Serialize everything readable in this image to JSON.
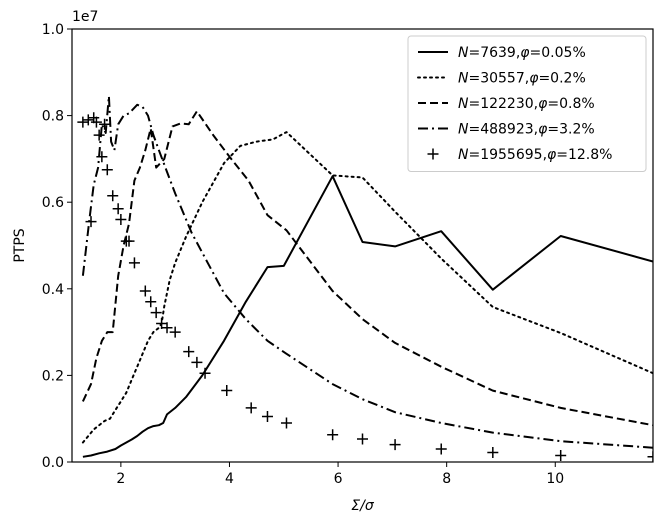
{
  "chart_data": {
    "type": "line",
    "xlabel": "Σ/σ",
    "ylabel": "PTPS",
    "y_multiplier_label": "1e7",
    "xlim": [
      1.1,
      11.8
    ],
    "ylim": [
      0.0,
      1.0
    ],
    "x_ticks": [
      2,
      4,
      6,
      8,
      10
    ],
    "y_ticks": [
      0.0,
      0.2,
      0.4,
      0.6,
      0.8,
      1.0
    ],
    "x_tick_labels": [
      "2",
      "4",
      "6",
      "8",
      "10"
    ],
    "y_tick_labels": [
      "0.0",
      "0.2",
      "0.4",
      "0.6",
      "0.8",
      "1.0"
    ],
    "grid": false,
    "legend_position": "top-right",
    "series": [
      {
        "name": "N=7639,φ=0.05%",
        "label_parts": [
          "N",
          "=7639,",
          "φ",
          "=0.05%"
        ],
        "style": "solid",
        "x": [
          1.3,
          1.45,
          1.6,
          1.75,
          1.9,
          2.0,
          2.1,
          2.2,
          2.3,
          2.4,
          2.5,
          2.6,
          2.7,
          2.78,
          2.85,
          3.0,
          3.2,
          3.5,
          3.9,
          4.3,
          4.7,
          5.0,
          5.9,
          6.45,
          7.05,
          7.9,
          8.85,
          10.1,
          11.8
        ],
        "y": [
          0.012,
          0.015,
          0.02,
          0.024,
          0.03,
          0.038,
          0.045,
          0.052,
          0.06,
          0.07,
          0.078,
          0.083,
          0.085,
          0.09,
          0.11,
          0.125,
          0.15,
          0.2,
          0.28,
          0.37,
          0.45,
          0.453,
          0.66,
          0.508,
          0.498,
          0.533,
          0.398,
          0.522,
          0.463
        ]
      },
      {
        "name": "N=30557,φ=0.2%",
        "label_parts": [
          "N",
          "=30557,",
          "φ",
          "=0.2%"
        ],
        "style": "dotted",
        "x": [
          1.3,
          1.5,
          1.7,
          1.8,
          1.9,
          2.0,
          2.1,
          2.2,
          2.3,
          2.4,
          2.5,
          2.6,
          2.7,
          2.75,
          2.8,
          2.9,
          3.0,
          3.2,
          3.5,
          3.9,
          4.2,
          4.5,
          4.8,
          5.05,
          5.9,
          6.45,
          7.05,
          7.9,
          8.85,
          10.1,
          11.8
        ],
        "y": [
          0.045,
          0.075,
          0.095,
          0.1,
          0.12,
          0.14,
          0.16,
          0.19,
          0.22,
          0.25,
          0.28,
          0.3,
          0.31,
          0.32,
          0.36,
          0.42,
          0.46,
          0.52,
          0.6,
          0.69,
          0.73,
          0.74,
          0.745,
          0.762,
          0.662,
          0.657,
          0.578,
          0.47,
          0.358,
          0.298,
          0.205
        ]
      },
      {
        "name": "N=122230,φ=0.8%",
        "label_parts": [
          "N",
          "=122230,",
          "φ",
          "=0.8%"
        ],
        "style": "dashed",
        "x": [
          1.3,
          1.45,
          1.55,
          1.65,
          1.75,
          1.85,
          1.95,
          2.05,
          2.15,
          2.25,
          2.35,
          2.45,
          2.55,
          2.65,
          2.8,
          2.95,
          3.1,
          3.25,
          3.4,
          3.7,
          4.0,
          4.35,
          4.7,
          5.05,
          5.9,
          6.45,
          7.05,
          7.9,
          8.85,
          10.1,
          11.8
        ],
        "y": [
          0.14,
          0.18,
          0.24,
          0.28,
          0.3,
          0.3,
          0.43,
          0.5,
          0.55,
          0.65,
          0.68,
          0.72,
          0.77,
          0.68,
          0.7,
          0.775,
          0.782,
          0.78,
          0.81,
          0.755,
          0.705,
          0.65,
          0.57,
          0.535,
          0.395,
          0.33,
          0.275,
          0.22,
          0.165,
          0.125,
          0.085
        ]
      },
      {
        "name": "N=488923,φ=3.2%",
        "label_parts": [
          "N",
          "=488923,",
          "φ",
          "=3.2%"
        ],
        "style": "dashdot",
        "x": [
          1.3,
          1.42,
          1.5,
          1.58,
          1.65,
          1.72,
          1.78,
          1.82,
          1.88,
          1.95,
          2.05,
          2.15,
          2.3,
          2.4,
          2.5,
          2.6,
          2.7,
          2.85,
          3.0,
          3.3,
          3.6,
          3.9,
          4.3,
          4.7,
          5.05,
          5.9,
          6.45,
          7.05,
          7.9,
          8.85,
          10.1,
          11.8
        ],
        "y": [
          0.43,
          0.56,
          0.64,
          0.68,
          0.78,
          0.76,
          0.845,
          0.74,
          0.72,
          0.78,
          0.8,
          0.805,
          0.825,
          0.82,
          0.8,
          0.755,
          0.72,
          0.67,
          0.62,
          0.53,
          0.46,
          0.39,
          0.33,
          0.28,
          0.25,
          0.18,
          0.145,
          0.115,
          0.09,
          0.068,
          0.048,
          0.033
        ]
      },
      {
        "name": "N=1955695,φ=12.8%",
        "label_parts": [
          "N",
          "=1955695,",
          "φ",
          "=12.8%"
        ],
        "style": "plus",
        "x": [
          1.3,
          1.4,
          1.45,
          1.5,
          1.55,
          1.6,
          1.65,
          1.7,
          1.75,
          1.85,
          1.95,
          2.0,
          2.1,
          2.15,
          2.25,
          2.45,
          2.55,
          2.65,
          2.75,
          2.85,
          3.0,
          3.25,
          3.4,
          3.55,
          3.95,
          4.4,
          4.7,
          5.05,
          5.9,
          6.45,
          7.05,
          7.9,
          8.85,
          10.1,
          11.8
        ],
        "y": [
          0.785,
          0.79,
          0.555,
          0.795,
          0.785,
          0.755,
          0.705,
          0.78,
          0.675,
          0.615,
          0.585,
          0.56,
          0.51,
          0.51,
          0.46,
          0.395,
          0.37,
          0.345,
          0.32,
          0.31,
          0.3,
          0.255,
          0.23,
          0.205,
          0.165,
          0.125,
          0.105,
          0.09,
          0.063,
          0.053,
          0.04,
          0.03,
          0.022,
          0.015,
          0.012
        ]
      }
    ]
  }
}
